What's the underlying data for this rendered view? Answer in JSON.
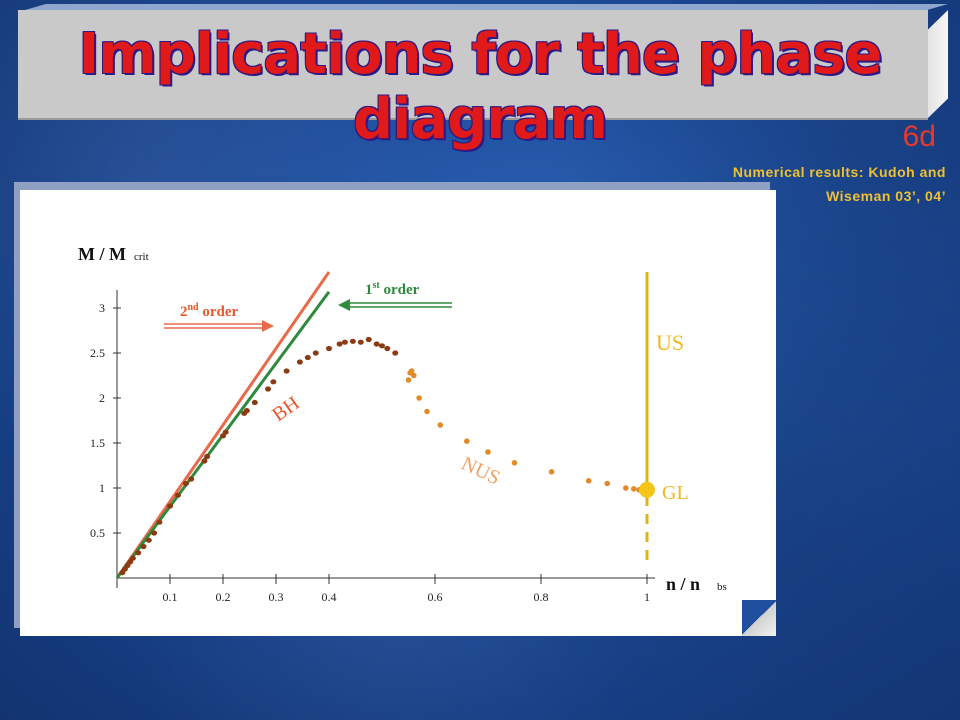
{
  "title": "Implications for the phase diagram",
  "slide_number": "6d",
  "reference": {
    "line1": "Numerical results: Kudoh and",
    "line2": "Wiseman 03’, 04’"
  },
  "colors": {
    "title_red": "#e0191b",
    "bh_points": "#8b3a12",
    "nus_points": "#e08a2a",
    "us_line": "#e0b21a",
    "gl_point": "#f5c518",
    "first_order_line": "#2e8b3e",
    "second_order_line": "#e86a4a"
  },
  "chart_data": {
    "type": "scatter",
    "ylabel_main": "M / M",
    "ylabel_sub": "crit",
    "xlabel_main": "n / n",
    "xlabel_sub": "bs",
    "xticks": [
      "0.1",
      "0.2",
      "0.3",
      "0.4",
      "0.6",
      "0.8",
      "1"
    ],
    "xtick_values": [
      0.1,
      0.2,
      0.3,
      0.4,
      0.6,
      0.8,
      1.0
    ],
    "yticks": [
      "0.5",
      "1",
      "1.5",
      "2",
      "2.5",
      "3"
    ],
    "ytick_values": [
      0.5,
      1,
      1.5,
      2,
      2.5,
      3
    ],
    "xlim": [
      0,
      1.05
    ],
    "ylim": [
      0,
      3.3
    ],
    "series": [
      {
        "name": "BH",
        "points": [
          [
            0.01,
            0.06
          ],
          [
            0.015,
            0.1
          ],
          [
            0.02,
            0.14
          ],
          [
            0.025,
            0.18
          ],
          [
            0.03,
            0.22
          ],
          [
            0.04,
            0.28
          ],
          [
            0.05,
            0.35
          ],
          [
            0.06,
            0.42
          ],
          [
            0.07,
            0.5
          ],
          [
            0.08,
            0.62
          ],
          [
            0.1,
            0.8
          ],
          [
            0.115,
            0.92
          ],
          [
            0.13,
            1.05
          ],
          [
            0.14,
            1.1
          ],
          [
            0.165,
            1.3
          ],
          [
            0.17,
            1.35
          ],
          [
            0.2,
            1.58
          ],
          [
            0.205,
            1.62
          ],
          [
            0.24,
            1.83
          ],
          [
            0.245,
            1.86
          ],
          [
            0.26,
            1.95
          ],
          [
            0.285,
            2.1
          ],
          [
            0.295,
            2.18
          ],
          [
            0.32,
            2.3
          ],
          [
            0.345,
            2.4
          ],
          [
            0.36,
            2.45
          ],
          [
            0.375,
            2.5
          ],
          [
            0.4,
            2.55
          ],
          [
            0.42,
            2.6
          ],
          [
            0.43,
            2.62
          ],
          [
            0.445,
            2.63
          ],
          [
            0.46,
            2.62
          ],
          [
            0.475,
            2.65
          ],
          [
            0.49,
            2.6
          ],
          [
            0.5,
            2.58
          ],
          [
            0.51,
            2.55
          ],
          [
            0.525,
            2.5
          ]
        ]
      },
      {
        "name": "NUS",
        "points": [
          [
            0.55,
            2.2
          ],
          [
            0.553,
            2.28
          ],
          [
            0.556,
            2.3
          ],
          [
            0.56,
            2.25
          ],
          [
            0.57,
            2.0
          ],
          [
            0.585,
            1.85
          ],
          [
            0.61,
            1.7
          ],
          [
            0.66,
            1.52
          ],
          [
            0.7,
            1.4
          ],
          [
            0.75,
            1.28
          ],
          [
            0.82,
            1.18
          ],
          [
            0.89,
            1.08
          ],
          [
            0.925,
            1.05
          ],
          [
            0.96,
            1.0
          ],
          [
            0.975,
            0.99
          ],
          [
            0.985,
            0.98
          ],
          [
            0.995,
            0.97
          ]
        ]
      }
    ],
    "lines": [
      {
        "name": "1st order",
        "from": [
          0.0,
          0.0
        ],
        "to": [
          0.4,
          3.18
        ]
      },
      {
        "name": "2nd order",
        "from": [
          0.0,
          0.0
        ],
        "to": [
          0.4,
          3.4
        ]
      },
      {
        "name": "US",
        "x": 1.0,
        "y_from": 0.98,
        "y_to": 3.4
      },
      {
        "name": "US dashed",
        "x": 1.0,
        "y_from": 0.2,
        "y_to": 0.98
      }
    ],
    "annotations": [
      {
        "text": "BH",
        "color": "#e8572a"
      },
      {
        "text": "NUS",
        "color": "#f0a060"
      },
      {
        "text": "US",
        "color": "#f0b820"
      },
      {
        "text": "GL",
        "color": "#f0b820"
      },
      {
        "text_main": "1",
        "text_sup": "st",
        "text_rest": " order",
        "color": "#2e8b3e"
      },
      {
        "text_main": "2",
        "text_sup": "nd",
        "text_rest": " order",
        "color": "#e8572a"
      }
    ],
    "gl_point": [
      1.0,
      0.98
    ]
  }
}
